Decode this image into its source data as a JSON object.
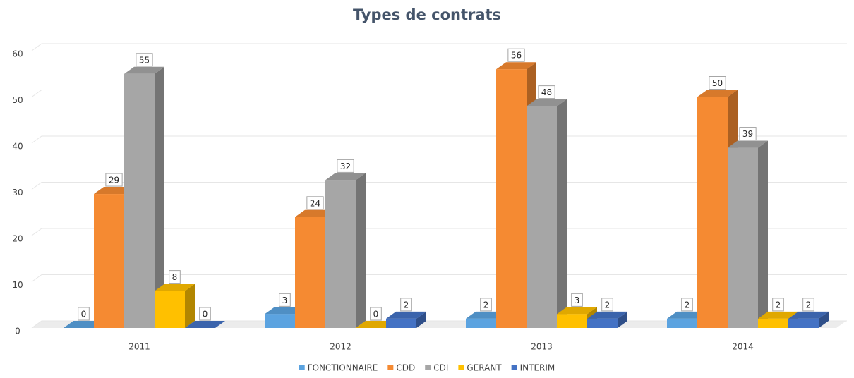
{
  "chart_data": {
    "type": "bar3d",
    "title": "Types de contrats",
    "categories": [
      "2011",
      "2012",
      "2013",
      "2014"
    ],
    "series": [
      {
        "name": "FONCTIONNAIRE",
        "color": "#5ba3e0",
        "values": [
          0,
          3,
          2,
          2
        ]
      },
      {
        "name": "CDD",
        "color": "#f58a32",
        "values": [
          29,
          24,
          56,
          50
        ]
      },
      {
        "name": "CDI",
        "color": "#a6a6a6",
        "values": [
          55,
          32,
          48,
          39
        ]
      },
      {
        "name": "GERANT",
        "color": "#ffc000",
        "values": [
          8,
          0,
          3,
          2
        ]
      },
      {
        "name": "INTERIM",
        "color": "#4472c4",
        "values": [
          0,
          2,
          2,
          2
        ]
      }
    ],
    "ylim": [
      0,
      60
    ],
    "yticks": [
      0,
      10,
      20,
      30,
      40,
      50,
      60
    ],
    "grid": true,
    "legend": "bottom",
    "data_labels": true
  }
}
